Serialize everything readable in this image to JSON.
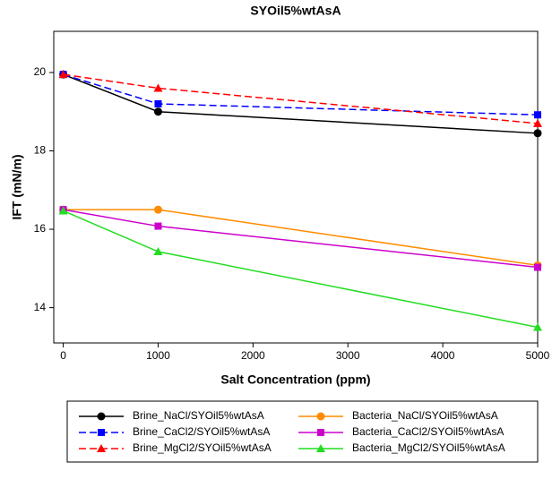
{
  "chart_data": {
    "type": "line",
    "title": "SYOil5%wtAsA",
    "x_label": "Salt Concentration (ppm)",
    "y_label": "IFT (mN/m)",
    "x": [
      0,
      1000,
      5000
    ],
    "xlim": [
      -100,
      5000
    ],
    "xticks": [
      0,
      1000,
      2000,
      3000,
      4000,
      5000
    ],
    "ylim": [
      13.1,
      21.05
    ],
    "yticks": [
      14,
      16,
      18,
      20
    ],
    "series": [
      {
        "name": "Brine_NaCl/SYOil5%wtAsA",
        "color": "#000000",
        "marker": "circle",
        "dashed": false,
        "values": [
          19.95,
          19.0,
          18.45
        ]
      },
      {
        "name": "Brine_CaCl2/SYOil5%wtAsA",
        "color": "#0000ff",
        "marker": "square",
        "dashed": true,
        "values": [
          19.95,
          19.2,
          18.92
        ]
      },
      {
        "name": "Brine_MgCl2/SYOil5%wtAsA",
        "color": "#ff0000",
        "marker": "triangle",
        "dashed": true,
        "values": [
          19.95,
          19.6,
          18.7
        ]
      },
      {
        "name": "Bacteria_NaCl/SYOil5%wtAsA",
        "color": "#ff8c00",
        "marker": "circle",
        "dashed": false,
        "values": [
          16.5,
          16.5,
          15.08
        ]
      },
      {
        "name": "Bacteria_CaCl2/SYOil5%wtAsA",
        "color": "#cc00cc",
        "marker": "square",
        "dashed": false,
        "values": [
          16.5,
          16.08,
          15.03
        ]
      },
      {
        "name": "Bacteria_MgCl2/SYOil5%wtAsA",
        "color": "#22dd22",
        "marker": "triangle",
        "dashed": false,
        "values": [
          16.47,
          15.43,
          13.5
        ]
      }
    ]
  }
}
